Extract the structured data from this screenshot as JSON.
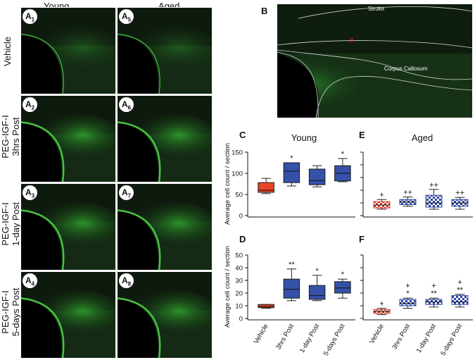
{
  "columns": {
    "young": "Young",
    "aged": "Aged"
  },
  "rows": [
    {
      "line1": "Vehicle",
      "line2": ""
    },
    {
      "line1": "PEG-IGF-I",
      "line2": "3hrs Post"
    },
    {
      "line1": "PEG-IGF-I",
      "line2": "1-day Post"
    },
    {
      "line1": "PEG-IGF-I",
      "line2": "5-days Post"
    }
  ],
  "panel_letters": {
    "A": "A",
    "B": "B",
    "C": "C",
    "D": "D",
    "E": "E",
    "F": "F"
  },
  "micro_labels": {
    "a1": "1",
    "a2": "2",
    "a3": "3",
    "a4": "4",
    "a5": "5",
    "a6": "6",
    "a7": "7",
    "a8": "8"
  },
  "panel_b": {
    "stroke_label": "Stroke",
    "cc_label": "Corpus Callosum",
    "mark": "II"
  },
  "chart_data": [
    {
      "id": "C",
      "type": "boxplot",
      "title": "Young",
      "ylabel": "Average cell count / section",
      "ylim": [
        0,
        150
      ],
      "yticks": [
        0,
        50,
        100,
        150
      ],
      "categories": [
        "Vehicle",
        "3hrs Post",
        "1-day Post",
        "5-days Post"
      ],
      "boxes": [
        {
          "min": 52,
          "q1": 55,
          "median": 60,
          "q3": 78,
          "max": 88,
          "annotation": ""
        },
        {
          "min": 70,
          "q1": 78,
          "median": 105,
          "q3": 125,
          "max": 125,
          "annotation": "*"
        },
        {
          "min": 68,
          "q1": 73,
          "median": 83,
          "q3": 110,
          "max": 118,
          "annotation": ""
        },
        {
          "min": 80,
          "q1": 82,
          "median": 100,
          "q3": 118,
          "max": 135,
          "annotation": "*"
        }
      ]
    },
    {
      "id": "D",
      "type": "boxplot",
      "title": "",
      "ylabel": "Average cell count / section",
      "ylim": [
        0,
        50
      ],
      "yticks": [
        0,
        10,
        20,
        30,
        40,
        50
      ],
      "categories": [
        "Vehicle",
        "3hrs Post",
        "1-day Post",
        "5-days Post"
      ],
      "xlabels_visible": true,
      "boxes": [
        {
          "min": 8,
          "q1": 8.5,
          "median": 9.5,
          "q3": 11,
          "max": 11,
          "annotation": ""
        },
        {
          "min": 14,
          "q1": 16,
          "median": 23,
          "q3": 31,
          "max": 39,
          "annotation": "**"
        },
        {
          "min": 14,
          "q1": 15,
          "median": 18,
          "q3": 26,
          "max": 34,
          "annotation": "*"
        },
        {
          "min": 16,
          "q1": 20,
          "median": 24,
          "q3": 29,
          "max": 31,
          "annotation": "*"
        }
      ]
    },
    {
      "id": "E",
      "type": "boxplot",
      "title": "Aged",
      "ylabel": "",
      "ylim": [
        0,
        150
      ],
      "yticks": [],
      "categories": [
        "Vehicle",
        "3hrs Post",
        "1-day Post",
        "5-days Post"
      ],
      "boxes": [
        {
          "min": 15,
          "q1": 18,
          "median": 25,
          "q3": 33,
          "max": 38,
          "annotation": "+"
        },
        {
          "min": 22,
          "q1": 26,
          "median": 32,
          "q3": 38,
          "max": 44,
          "annotation": "++"
        },
        {
          "min": 15,
          "q1": 20,
          "median": 30,
          "q3": 48,
          "max": 62,
          "annotation": "++"
        },
        {
          "min": 15,
          "q1": 22,
          "median": 30,
          "q3": 38,
          "max": 43,
          "annotation": "++"
        }
      ]
    },
    {
      "id": "F",
      "type": "boxplot",
      "title": "",
      "ylabel": "",
      "ylim": [
        0,
        50
      ],
      "yticks": [],
      "categories": [
        "Vehicle",
        "3hrs Post",
        "1-day Post",
        "5-days Post"
      ],
      "xlabels_visible": true,
      "boxes": [
        {
          "min": 3,
          "q1": 4,
          "median": 5.5,
          "q3": 7,
          "max": 8,
          "annotation": "+"
        },
        {
          "min": 8,
          "q1": 10,
          "median": 12,
          "q3": 15,
          "max": 16,
          "annotation": "+\n*"
        },
        {
          "min": 9,
          "q1": 11,
          "median": 13,
          "q3": 15,
          "max": 16,
          "annotation": "+\n**"
        },
        {
          "min": 9,
          "q1": 11,
          "median": 13,
          "q3": 18,
          "max": 19,
          "annotation": "+\n**"
        }
      ]
    }
  ],
  "colors": {
    "vehicle_fill": "#e8452a",
    "treated_fill": "#3552a8",
    "aged_vehicle_stroke": "#d63a2a",
    "aged_treated_stroke": "#2c46a0",
    "micro_bg": "#0c160c",
    "micro_green": "#3cc83a"
  }
}
